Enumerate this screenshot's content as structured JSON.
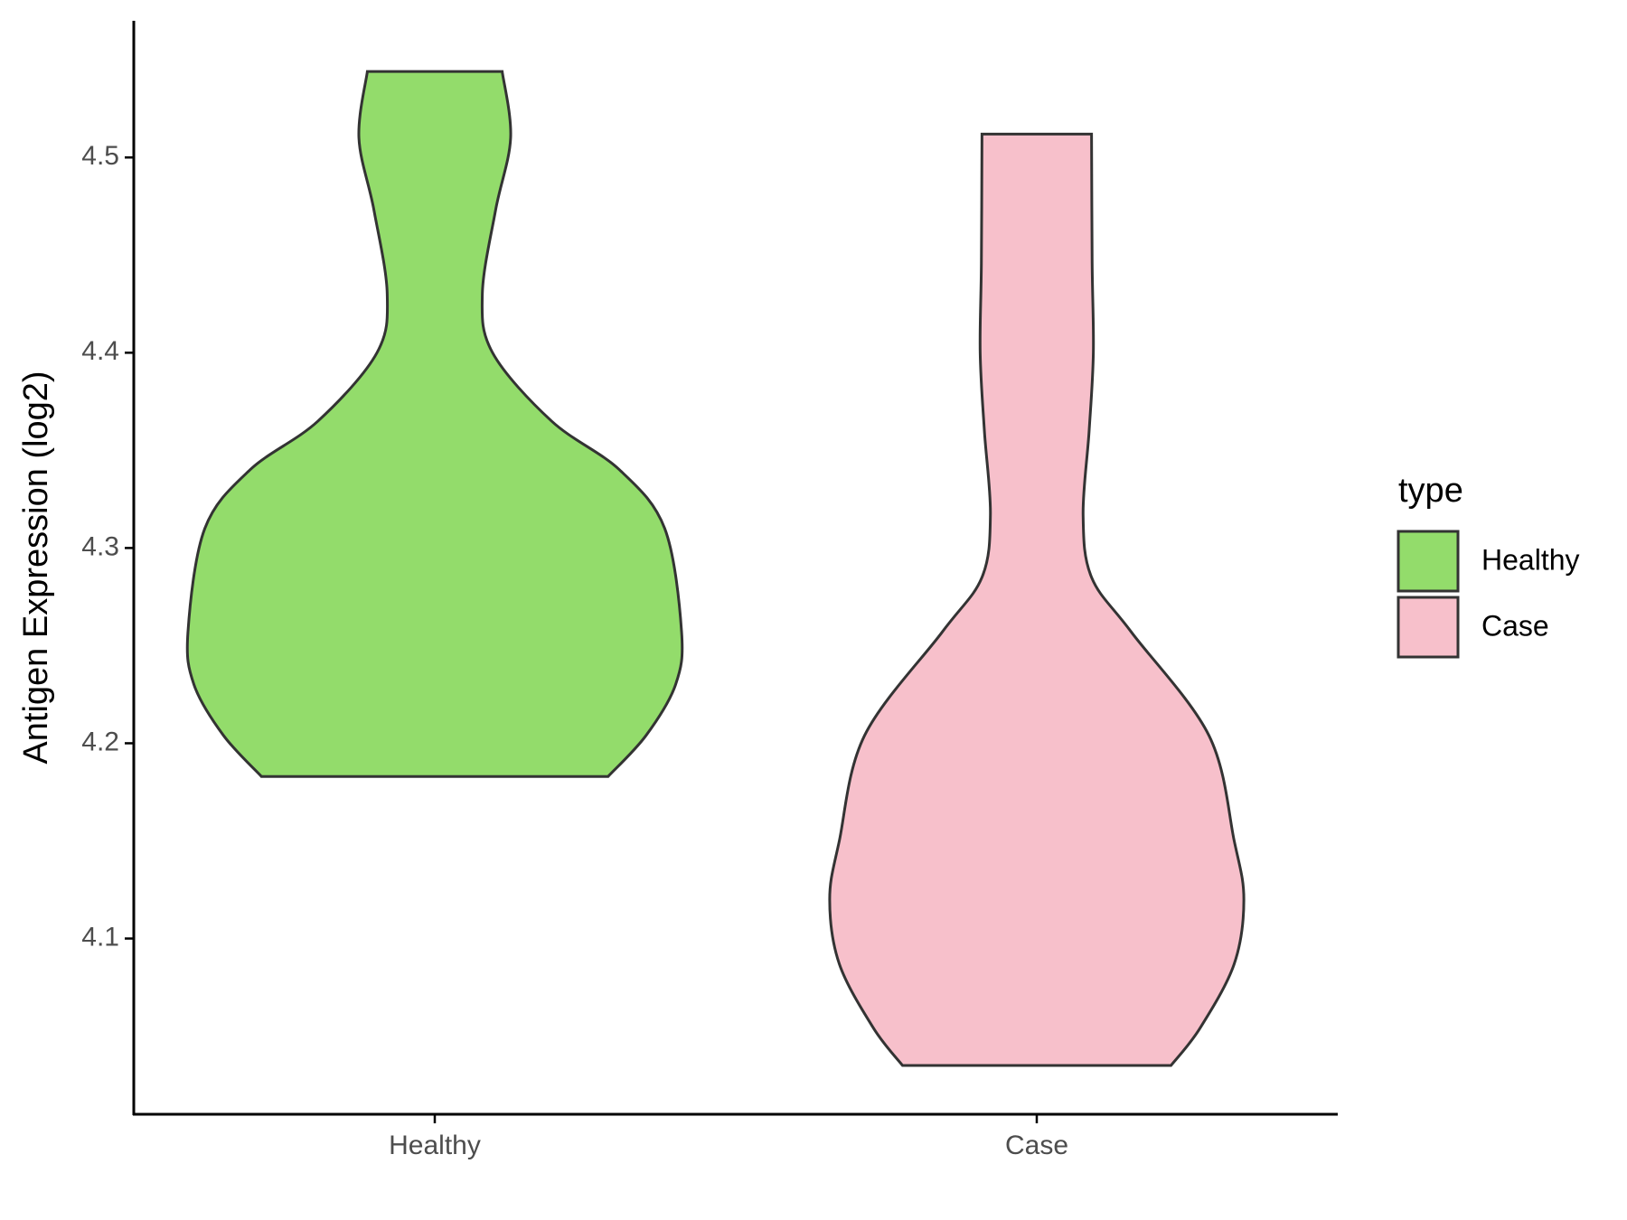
{
  "chart_data": {
    "type": "violin",
    "y_label": "Antigen Expression (log2)",
    "categories": [
      "Healthy",
      "Case"
    ],
    "series": [
      {
        "name": "Healthy",
        "color": "#93dc6b",
        "y": [
          4.544,
          4.51,
          4.473,
          4.43,
          4.4,
          4.365,
          4.34,
          4.31,
          4.257,
          4.23,
          4.204,
          4.183
        ],
        "width": [
          0.112,
          0.126,
          0.101,
          0.079,
          0.096,
          0.194,
          0.307,
          0.382,
          0.41,
          0.4,
          0.351,
          0.288
        ]
      },
      {
        "name": "Case",
        "color": "#f7c0cb",
        "y": [
          4.512,
          4.446,
          4.4,
          4.36,
          4.317,
          4.285,
          4.257,
          4.204,
          4.15,
          4.12,
          4.087,
          4.054,
          4.035
        ],
        "width": [
          0.091,
          0.092,
          0.094,
          0.087,
          0.077,
          0.091,
          0.157,
          0.286,
          0.328,
          0.344,
          0.328,
          0.271,
          0.223
        ]
      }
    ],
    "ylim": [
      4.01,
      4.57
    ],
    "yticks": [
      4.1,
      4.2,
      4.3,
      4.4,
      4.5
    ],
    "legend_title": "type",
    "legend": "right"
  }
}
